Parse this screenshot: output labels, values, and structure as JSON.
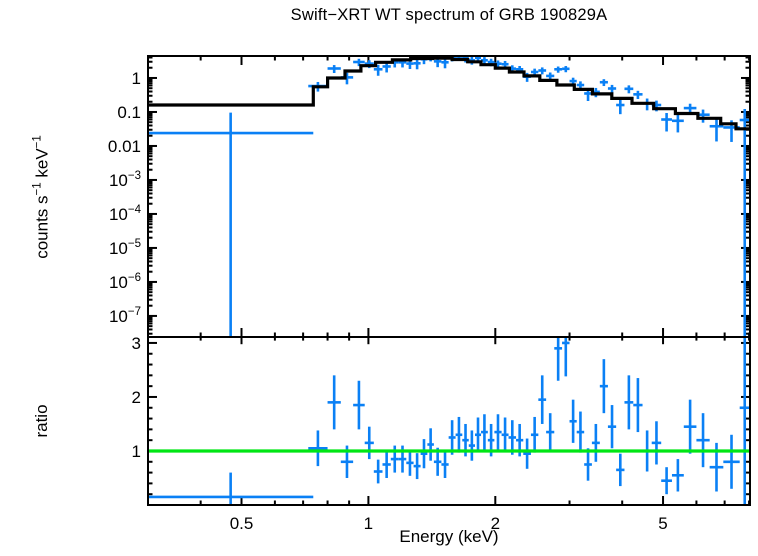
{
  "title": "Swift−XRT WT spectrum of GRB 190829A",
  "colors": {
    "data": "#0a80f5",
    "model": "#000000",
    "ratio_line": "#00e614",
    "frame": "#000000",
    "background": "#ffffff"
  },
  "axes": {
    "x": {
      "label": "Energy (keV)",
      "scale": "log",
      "min": 0.3,
      "max": 8.04,
      "major_ticks": [
        0.5,
        1,
        2,
        5
      ],
      "major_labels": [
        "0.5",
        "1",
        "2",
        "5"
      ],
      "minor_ticks": [
        0.4,
        0.6,
        0.7,
        0.8,
        0.9,
        3,
        4,
        6,
        7,
        8
      ]
    },
    "y_counts": {
      "label": "counts s⁻¹ keV⁻¹",
      "label_parts": [
        [
          "counts s",
          0
        ],
        [
          "−1",
          1
        ],
        [
          " keV",
          0
        ],
        [
          "−1",
          1
        ]
      ],
      "scale": "log",
      "min": 2.4e-08,
      "max": 4.43,
      "major_ticks": [
        1,
        0.1,
        0.01,
        0.001,
        0.0001,
        1e-05,
        1e-06,
        1e-07
      ],
      "major_labels": [
        "1",
        "0.1",
        "0.01",
        "10^−3",
        "10^−4",
        "10^−5",
        "10^−6",
        "10^−7"
      ]
    },
    "y_ratio": {
      "label": "ratio",
      "scale": "linear",
      "min": 0,
      "max": 3.11,
      "major_ticks": [
        1,
        2,
        3
      ],
      "major_labels": [
        "1",
        "2",
        "3"
      ],
      "minor_step": 0.2
    }
  },
  "chart_data": {
    "type": "scatter",
    "description": "Top panel: X-ray count-rate spectrum with folded model (black stepped line); bottom panel: data/model ratio with reference line at 1.",
    "panels": [
      "counts spectrum",
      "ratio"
    ],
    "ratio_reference_line": 1,
    "model_steps": {
      "columns": [
        "e_lo_keV",
        "e_hi_keV",
        "model_counts_per_s_keV"
      ],
      "rows": [
        [
          0.3,
          0.74,
          0.16
        ],
        [
          0.74,
          0.8,
          0.55
        ],
        [
          0.8,
          0.88,
          1.0
        ],
        [
          0.88,
          0.96,
          1.6
        ],
        [
          0.96,
          1.04,
          2.3
        ],
        [
          1.04,
          1.14,
          2.9
        ],
        [
          1.14,
          1.26,
          3.4
        ],
        [
          1.26,
          1.42,
          3.75
        ],
        [
          1.42,
          1.58,
          3.85
        ],
        [
          1.58,
          1.72,
          3.5
        ],
        [
          1.72,
          1.85,
          3.0
        ],
        [
          1.85,
          2.0,
          2.45
        ],
        [
          2.0,
          2.16,
          1.95
        ],
        [
          2.16,
          2.34,
          1.5
        ],
        [
          2.34,
          2.55,
          1.15
        ],
        [
          2.55,
          2.8,
          0.85
        ],
        [
          2.8,
          3.08,
          0.62
        ],
        [
          3.08,
          3.4,
          0.46
        ],
        [
          3.4,
          3.78,
          0.34
        ],
        [
          3.78,
          4.22,
          0.25
        ],
        [
          4.22,
          4.75,
          0.18
        ],
        [
          4.75,
          5.35,
          0.125
        ],
        [
          5.35,
          6.05,
          0.09
        ],
        [
          6.05,
          6.85,
          0.065
        ],
        [
          6.85,
          7.45,
          0.045
        ],
        [
          7.45,
          8.03,
          0.032
        ]
      ]
    },
    "points": {
      "columns": [
        "e_lo_keV",
        "e_hi_keV",
        "counts_per_s_keV",
        "ratio",
        "ratio_err"
      ],
      "rows": [
        [
          0.3,
          0.74,
          0.024,
          0.15,
          0.45
        ],
        [
          0.72,
          0.8,
          0.58,
          1.05,
          0.33
        ],
        [
          0.8,
          0.86,
          1.9,
          1.9,
          0.5
        ],
        [
          0.86,
          0.92,
          1.04,
          0.8,
          0.3
        ],
        [
          0.92,
          0.98,
          2.95,
          1.85,
          0.45
        ],
        [
          0.98,
          1.03,
          2.64,
          1.15,
          0.3
        ],
        [
          1.03,
          1.08,
          1.8,
          0.62,
          0.22
        ],
        [
          1.08,
          1.13,
          2.18,
          0.75,
          0.25
        ],
        [
          1.13,
          1.18,
          2.89,
          0.85,
          0.25
        ],
        [
          1.18,
          1.23,
          2.89,
          0.85,
          0.25
        ],
        [
          1.23,
          1.28,
          2.65,
          0.78,
          0.24
        ],
        [
          1.28,
          1.33,
          2.7,
          0.72,
          0.24
        ],
        [
          1.33,
          1.38,
          3.56,
          0.95,
          0.27
        ],
        [
          1.38,
          1.43,
          4.2,
          1.12,
          0.3
        ],
        [
          1.43,
          1.49,
          3.08,
          0.8,
          0.26
        ],
        [
          1.49,
          1.55,
          2.89,
          0.75,
          0.25
        ],
        [
          1.55,
          1.61,
          4.12,
          1.25,
          0.32
        ],
        [
          1.61,
          1.67,
          4.29,
          1.3,
          0.33
        ],
        [
          1.67,
          1.73,
          3.8,
          1.2,
          0.3
        ],
        [
          1.73,
          1.79,
          3.3,
          1.1,
          0.28
        ],
        [
          1.79,
          1.85,
          3.9,
          1.3,
          0.32
        ],
        [
          1.85,
          1.92,
          3.31,
          1.35,
          0.33
        ],
        [
          1.92,
          1.99,
          2.94,
          1.2,
          0.3
        ],
        [
          1.99,
          2.07,
          2.63,
          1.35,
          0.33
        ],
        [
          2.07,
          2.15,
          2.54,
          1.3,
          0.32
        ],
        [
          2.15,
          2.24,
          1.88,
          1.25,
          0.32
        ],
        [
          2.24,
          2.33,
          1.8,
          1.2,
          0.3
        ],
        [
          2.33,
          2.43,
          1.09,
          0.95,
          0.28
        ],
        [
          2.43,
          2.53,
          1.5,
          1.3,
          0.33
        ],
        [
          2.53,
          2.64,
          1.66,
          1.95,
          0.45
        ],
        [
          2.64,
          2.76,
          1.15,
          1.35,
          0.35
        ],
        [
          2.76,
          2.88,
          1.8,
          2.9,
          0.6
        ],
        [
          2.88,
          3.0,
          1.86,
          3.0,
          0.62
        ],
        [
          3.0,
          3.12,
          0.81,
          1.55,
          0.4
        ],
        [
          3.12,
          3.25,
          0.62,
          1.35,
          0.38
        ],
        [
          3.25,
          3.39,
          0.35,
          0.75,
          0.3
        ],
        [
          3.39,
          3.54,
          0.39,
          1.15,
          0.35
        ],
        [
          3.54,
          3.7,
          0.75,
          2.2,
          0.5
        ],
        [
          3.7,
          3.87,
          0.49,
          1.45,
          0.4
        ],
        [
          3.87,
          4.05,
          0.16,
          0.65,
          0.3
        ],
        [
          4.05,
          4.25,
          0.48,
          1.9,
          0.5
        ],
        [
          4.25,
          4.47,
          0.33,
          1.85,
          0.5
        ],
        [
          4.47,
          4.7,
          0.18,
          1.0,
          0.38
        ],
        [
          4.7,
          4.95,
          0.16,
          1.15,
          0.4
        ],
        [
          4.95,
          5.25,
          0.06,
          0.45,
          0.25
        ],
        [
          5.25,
          5.6,
          0.055,
          0.55,
          0.3
        ],
        [
          5.6,
          6.0,
          0.13,
          1.45,
          0.5
        ],
        [
          6.0,
          6.45,
          0.083,
          1.2,
          0.5
        ],
        [
          6.45,
          6.95,
          0.038,
          0.7,
          0.45
        ],
        [
          6.95,
          7.6,
          0.035,
          0.8,
          0.5
        ],
        [
          7.6,
          8.03,
          0.058,
          1.8,
          2.0
        ]
      ]
    }
  }
}
